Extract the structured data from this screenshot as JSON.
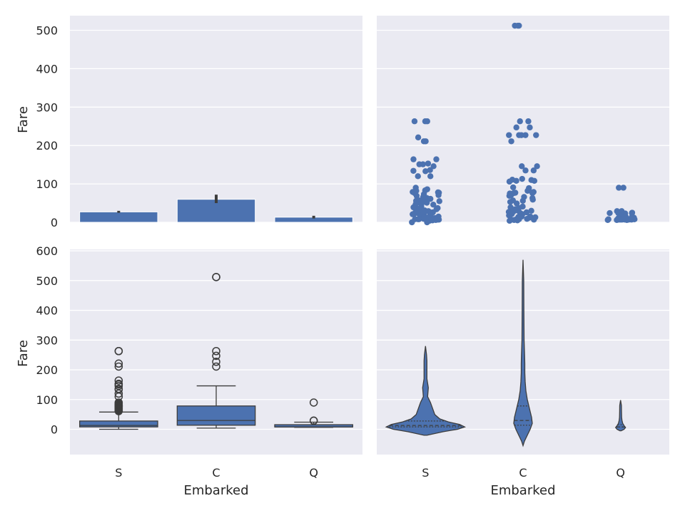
{
  "chart_data": [
    {
      "panel": "top-left",
      "type": "bar",
      "xlabel": "",
      "ylabel": "Fare",
      "categories": [
        "S",
        "C",
        "Q"
      ],
      "values": [
        27.1,
        59.9,
        13.3
      ],
      "error_bars": [
        [
          24.7,
          29.9
        ],
        [
          50.0,
          72.0
        ],
        [
          10.0,
          17.0
        ]
      ],
      "ylim": [
        0,
        538
      ],
      "yticks": [
        0,
        100,
        200,
        300,
        400,
        500
      ],
      "color": "#4c72b0",
      "grid": true
    },
    {
      "panel": "top-right",
      "type": "scatter",
      "xlabel": "",
      "ylabel": "",
      "categories": [
        "S",
        "C",
        "Q"
      ],
      "ylim": [
        0,
        538
      ],
      "shares_y_with": "top-left",
      "points": {
        "S": [
          263,
          263,
          263,
          221,
          211,
          211,
          164,
          164,
          153,
          151,
          151,
          146,
          136,
          134,
          133,
          120,
          120,
          90,
          86,
          83,
          82,
          79,
          78,
          77,
          76,
          73,
          71,
          69,
          66,
          63,
          61,
          57,
          56,
          55,
          53,
          52,
          51,
          50,
          47,
          46,
          42,
          40,
          39,
          37,
          35,
          34,
          31,
          30,
          29,
          27,
          26,
          26,
          25,
          24,
          23,
          21,
          21,
          20,
          18,
          16,
          15,
          14,
          13,
          13,
          12,
          11,
          10,
          9,
          9,
          8,
          8,
          8,
          8,
          7,
          7,
          7,
          7,
          6,
          5,
          4,
          0,
          0
        ],
        "C": [
          512,
          512,
          512,
          263,
          263,
          247,
          247,
          227,
          227,
          227,
          227,
          227,
          211,
          146,
          146,
          135,
          135,
          113,
          111,
          110,
          108,
          108,
          106,
          91,
          89,
          83,
          82,
          79,
          77,
          76,
          76,
          75,
          71,
          69,
          66,
          63,
          59,
          57,
          56,
          53,
          49,
          41,
          39,
          37,
          34,
          31,
          30,
          29,
          28,
          27,
          26,
          25,
          24,
          22,
          21,
          19,
          18,
          15,
          15,
          14,
          14,
          13,
          12,
          9,
          8,
          8,
          7,
          7,
          7,
          7,
          6,
          5,
          4
        ],
        "Q": [
          90,
          90,
          29,
          29,
          25,
          25,
          24,
          24,
          24,
          23,
          16,
          15,
          15,
          13,
          12,
          12,
          10,
          9,
          9,
          8,
          8,
          8,
          8,
          8,
          8,
          8,
          8,
          8,
          7,
          7,
          7,
          7,
          7,
          7,
          7,
          7,
          6,
          6,
          6
        ]
      },
      "color": "#4c72b0",
      "grid": true
    },
    {
      "panel": "bottom-left",
      "type": "box",
      "xlabel": "Embarked",
      "ylabel": "Fare",
      "categories": [
        "S",
        "C",
        "Q"
      ],
      "ylim": [
        -85,
        605
      ],
      "yticks": [
        0,
        100,
        200,
        300,
        400,
        500,
        600
      ],
      "boxes": [
        {
          "category": "S",
          "whisker_low": 0,
          "q1": 8.05,
          "median": 13.0,
          "q3": 27.9,
          "whisker_high": 58
        },
        {
          "category": "C",
          "whisker_low": 4,
          "q1": 13.7,
          "median": 29.7,
          "q3": 78.5,
          "whisker_high": 146
        },
        {
          "category": "Q",
          "whisker_low": 6.75,
          "q1": 7.75,
          "median": 7.75,
          "q3": 15.5,
          "whisker_high": 24
        }
      ],
      "outliers": {
        "S": [
          263,
          263,
          221,
          211,
          164,
          153,
          151,
          146,
          136,
          134,
          120,
          110,
          90,
          86,
          83,
          82,
          79,
          78,
          77,
          76,
          73,
          71,
          69,
          66,
          63,
          61
        ],
        "C": [
          512,
          512,
          263,
          247,
          227,
          211
        ],
        "Q": [
          90,
          29,
          29
        ]
      },
      "color": "#4c72b0",
      "grid": true
    },
    {
      "panel": "bottom-right",
      "type": "violin",
      "xlabel": "Embarked",
      "ylabel": "",
      "categories": [
        "S",
        "C",
        "Q"
      ],
      "ylim": [
        -85,
        605
      ],
      "shares_y_with": "bottom-left",
      "violins": [
        {
          "category": "S",
          "min": -20,
          "max": 280,
          "q1": 8.05,
          "median": 13.0,
          "q3": 27.9,
          "max_half_width": 55
        },
        {
          "category": "C",
          "min": -55,
          "max": 570,
          "q1": 13.7,
          "median": 29.7,
          "q3": 78.5,
          "max_half_width": 13
        },
        {
          "category": "Q",
          "min": -5,
          "max": 98,
          "q1": 7.75,
          "median": 7.75,
          "q3": 15.5,
          "max_half_width": 7
        }
      ],
      "color": "#4c72b0",
      "grid": true
    }
  ]
}
